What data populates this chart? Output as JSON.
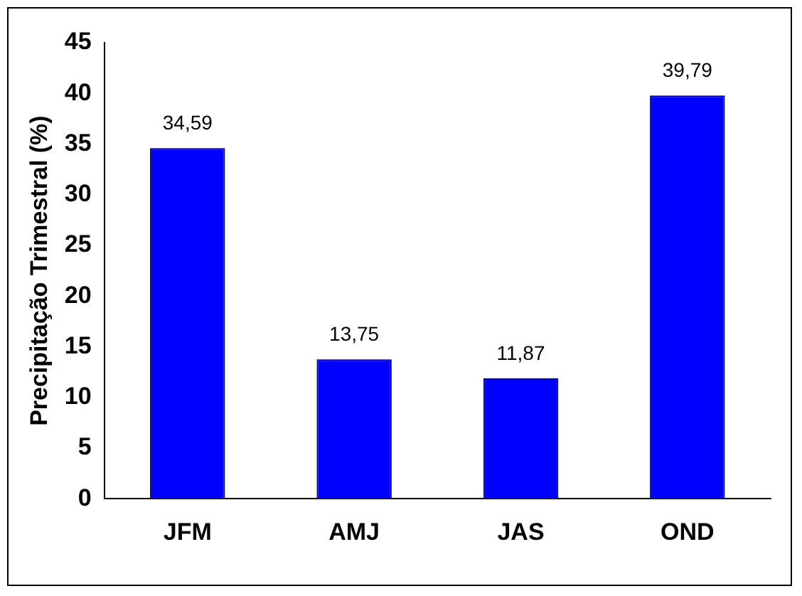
{
  "chart_data": {
    "type": "bar",
    "ylabel": "Precipitação Trimestral (%)",
    "categories": [
      "JFM",
      "AMJ",
      "JAS",
      "OND"
    ],
    "values": [
      34.59,
      13.75,
      11.87,
      39.79
    ],
    "value_labels": [
      "34,59",
      "13,75",
      "11,87",
      "39,79"
    ],
    "color": "#0000ff",
    "ylim": [
      0,
      45
    ],
    "yticks": [
      0,
      5,
      10,
      15,
      20,
      25,
      30,
      35,
      40,
      45
    ],
    "grid": false,
    "legend": false
  }
}
